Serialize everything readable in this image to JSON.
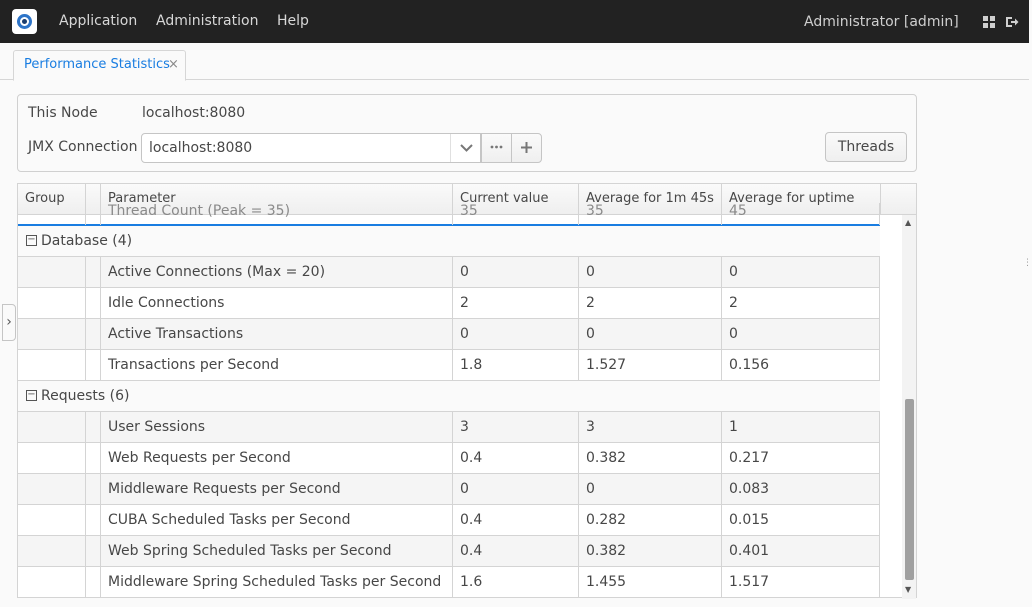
{
  "topbar": {
    "menu": [
      "Application",
      "Administration",
      "Help"
    ],
    "user": "Administrator [admin]"
  },
  "tab": {
    "label": "Performance Statistics",
    "close": "×"
  },
  "form": {
    "node_label": "This Node",
    "node_value": "localhost:8080",
    "jmx_label": "JMX Connection",
    "jmx_value": "localhost:8080",
    "threads_button": "Threads"
  },
  "grid": {
    "columns": [
      "Group",
      "Parameter",
      "Current value",
      "Average for 1m 45s",
      "Average for uptime"
    ],
    "partial_row": {
      "parameter": "Thread Count (Peak = 35)",
      "current": "35",
      "avg": "35",
      "uptime": "45"
    },
    "groups": [
      {
        "title": "Database (4)",
        "rows": [
          {
            "parameter": "Active Connections (Max = 20)",
            "current": "0",
            "avg": "0",
            "uptime": "0"
          },
          {
            "parameter": "Idle Connections",
            "current": "2",
            "avg": "2",
            "uptime": "2"
          },
          {
            "parameter": "Active Transactions",
            "current": "0",
            "avg": "0",
            "uptime": "0"
          },
          {
            "parameter": "Transactions per Second",
            "current": "1.8",
            "avg": "1.527",
            "uptime": "0.156"
          }
        ]
      },
      {
        "title": "Requests (6)",
        "rows": [
          {
            "parameter": "User Sessions",
            "current": "3",
            "avg": "3",
            "uptime": "1"
          },
          {
            "parameter": "Web Requests per Second",
            "current": "0.4",
            "avg": "0.382",
            "uptime": "0.217"
          },
          {
            "parameter": "Middleware Requests per Second",
            "current": "0",
            "avg": "0",
            "uptime": "0.083"
          },
          {
            "parameter": "CUBA Scheduled Tasks per Second",
            "current": "0.4",
            "avg": "0.282",
            "uptime": "0.015"
          },
          {
            "parameter": "Web Spring Scheduled Tasks per Second",
            "current": "0.4",
            "avg": "0.382",
            "uptime": "0.401"
          },
          {
            "parameter": "Middleware Spring Scheduled Tasks per Second",
            "current": "1.6",
            "avg": "1.455",
            "uptime": "1.517"
          }
        ]
      }
    ]
  }
}
